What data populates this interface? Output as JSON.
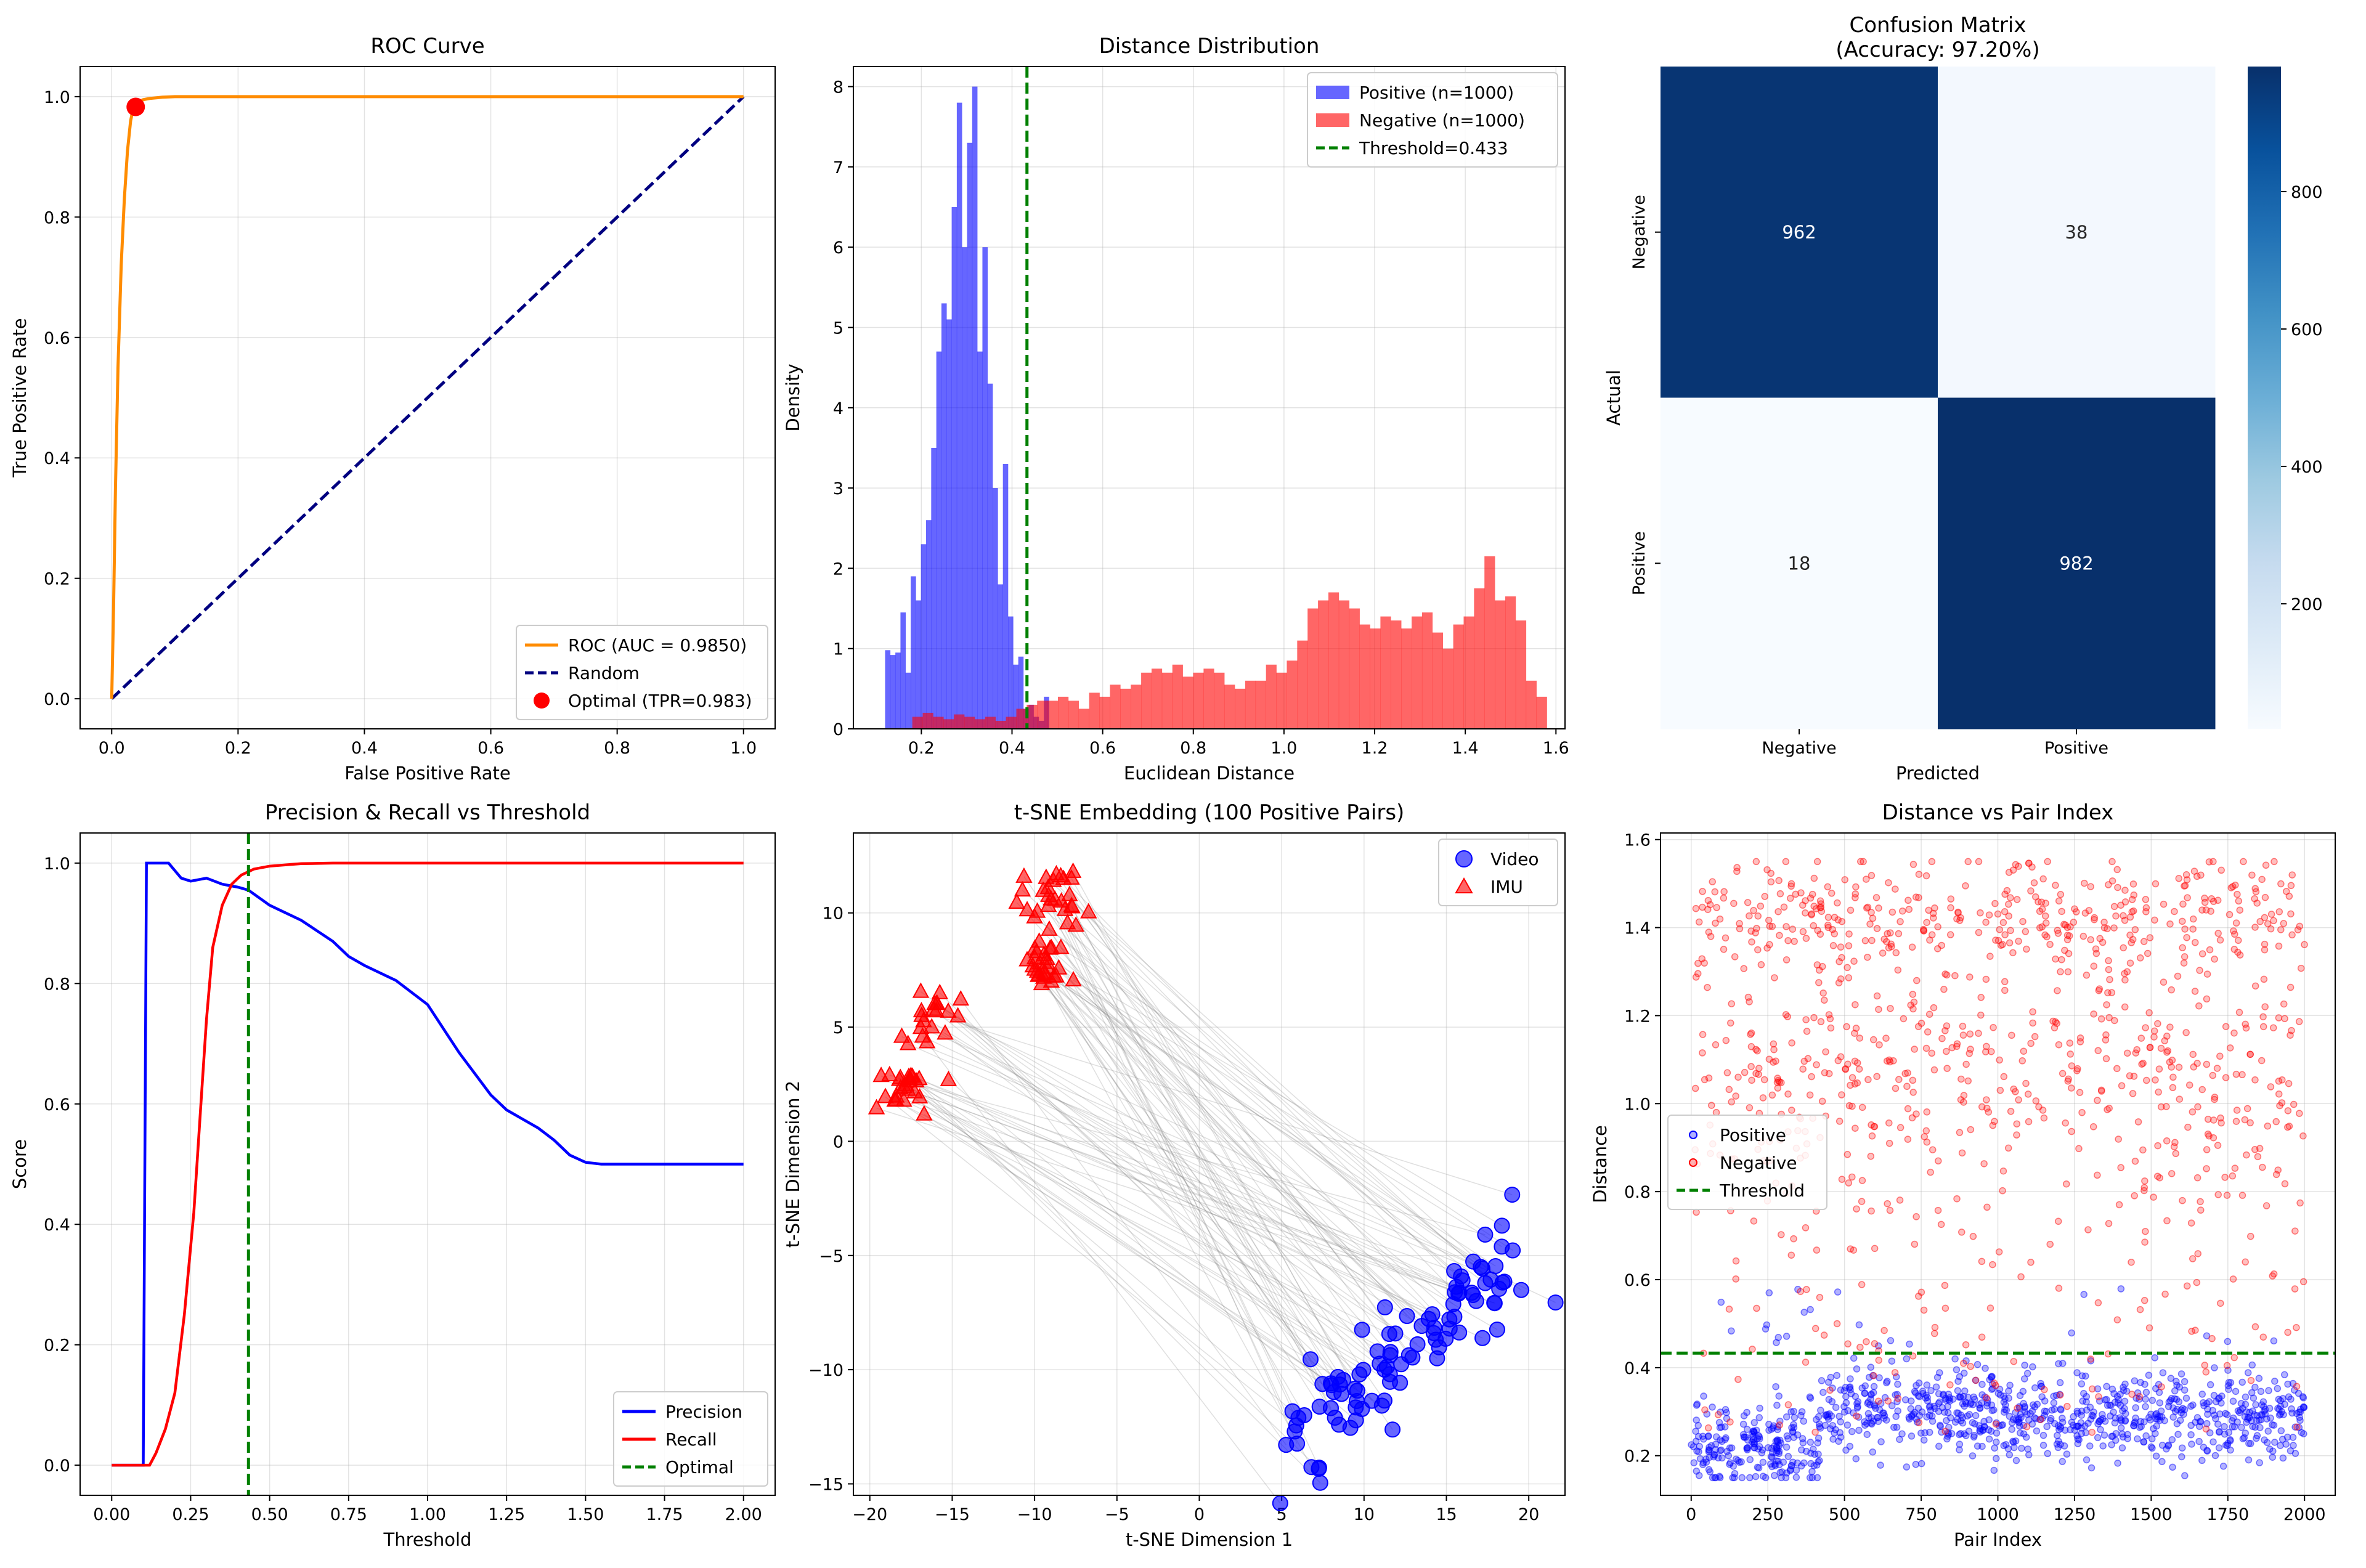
{
  "chart_data": [
    {
      "id": "roc",
      "type": "line",
      "title": "ROC Curve",
      "xlabel": "False Positive Rate",
      "ylabel": "True Positive Rate",
      "xlim": [
        -0.05,
        1.05
      ],
      "ylim": [
        -0.05,
        1.05
      ],
      "xticks": [
        0,
        0.2,
        0.4,
        0.6,
        0.8,
        1.0
      ],
      "yticks": [
        0,
        0.2,
        0.4,
        0.6,
        0.8,
        1.0
      ],
      "xticklabels": [
        "0.0",
        "0.2",
        "0.4",
        "0.6",
        "0.8",
        "1.0"
      ],
      "yticklabels": [
        "0.0",
        "0.2",
        "0.4",
        "0.6",
        "0.8",
        "1.0"
      ],
      "grid": true,
      "legend_position": "lower right",
      "series": [
        {
          "name": "ROC (AUC = 0.9850)",
          "color": "#ff8c00",
          "style": "solid",
          "x": [
            0,
            0.001,
            0.003,
            0.006,
            0.01,
            0.015,
            0.02,
            0.025,
            0.03,
            0.033,
            0.036,
            0.04,
            0.05,
            0.06,
            0.08,
            0.1,
            0.2,
            0.5,
            1.0
          ],
          "y": [
            0,
            0.05,
            0.15,
            0.35,
            0.55,
            0.72,
            0.83,
            0.91,
            0.96,
            0.975,
            0.983,
            0.99,
            0.995,
            0.997,
            0.999,
            1.0,
            1.0,
            1.0,
            1.0
          ]
        },
        {
          "name": "Random",
          "color": "#000080",
          "style": "dashed",
          "x": [
            0,
            1
          ],
          "y": [
            0,
            1
          ]
        }
      ],
      "points": [
        {
          "name": "Optimal (TPR=0.983)",
          "color": "#ff0000",
          "x": 0.038,
          "y": 0.983
        }
      ]
    },
    {
      "id": "dist",
      "type": "histogram",
      "title": "Distance Distribution",
      "xlabel": "Euclidean Distance",
      "ylabel": "Density",
      "xlim": [
        0.05,
        1.62
      ],
      "ylim": [
        0,
        8.25
      ],
      "xticks": [
        0.2,
        0.4,
        0.6,
        0.8,
        1.0,
        1.2,
        1.4,
        1.6
      ],
      "yticks": [
        0,
        1,
        2,
        3,
        4,
        5,
        6,
        7,
        8
      ],
      "xticklabels": [
        "0.2",
        "0.4",
        "0.6",
        "0.8",
        "1.0",
        "1.2",
        "1.4",
        "1.6"
      ],
      "yticklabels": [
        "0",
        "1",
        "2",
        "3",
        "4",
        "5",
        "6",
        "7",
        "8"
      ],
      "grid": true,
      "legend_position": "upper right",
      "series": [
        {
          "name": "Positive (n=1000)",
          "color": "#0000ff",
          "alpha": 0.6,
          "bin_start": 0.12,
          "bin_width": 0.0113,
          "values": [
            0.98,
            0.92,
            0.95,
            1.45,
            0.7,
            1.9,
            1.6,
            2.3,
            2.6,
            3.5,
            4.7,
            5.3,
            5.1,
            6.5,
            7.8,
            6.0,
            7.3,
            8.0,
            4.7,
            6.0,
            4.3,
            3.0,
            1.8,
            3.3,
            1.4,
            0.8,
            0.9,
            0.25,
            0.3,
            0.15,
            0.1,
            0.4
          ]
        },
        {
          "name": "Negative (n=1000)",
          "color": "#ff0000",
          "alpha": 0.6,
          "bin_start": 0.18,
          "bin_width": 0.02295,
          "values": [
            0.15,
            0.2,
            0.15,
            0.12,
            0.18,
            0.15,
            0.12,
            0.15,
            0.1,
            0.15,
            0.25,
            0.3,
            0.35,
            0.35,
            0.4,
            0.35,
            0.25,
            0.45,
            0.4,
            0.55,
            0.5,
            0.55,
            0.7,
            0.75,
            0.7,
            0.8,
            0.65,
            0.7,
            0.75,
            0.7,
            0.55,
            0.5,
            0.6,
            0.6,
            0.8,
            0.7,
            0.85,
            1.1,
            1.5,
            1.6,
            1.7,
            1.6,
            1.5,
            1.3,
            1.25,
            1.4,
            1.35,
            1.25,
            1.4,
            1.45,
            1.2,
            1.0,
            1.3,
            1.4,
            1.75,
            2.15,
            1.6,
            1.65,
            1.35,
            0.6,
            0.4
          ]
        }
      ],
      "vlines": [
        {
          "name": "Threshold=0.433",
          "color": "#008000",
          "x": 0.433
        }
      ]
    },
    {
      "id": "cm",
      "type": "heatmap",
      "title": "Confusion Matrix",
      "subtitle": "(Accuracy: 97.20%)",
      "xlabel": "Predicted",
      "ylabel": "Actual",
      "x_categories": [
        "Negative",
        "Positive"
      ],
      "y_categories": [
        "Negative",
        "Positive"
      ],
      "values": [
        [
          962,
          38
        ],
        [
          18,
          982
        ]
      ],
      "colorbar_ticks": [
        200,
        400,
        600,
        800
      ],
      "colorbar_ticklabels": [
        "200",
        "400",
        "600",
        "800"
      ],
      "vmin": 18,
      "vmax": 982,
      "cmap": [
        "#f7fbff",
        "#deebf7",
        "#c6dbef",
        "#9ecae1",
        "#6baed6",
        "#4292c6",
        "#2171b5",
        "#08519c",
        "#08306b"
      ]
    },
    {
      "id": "pr",
      "type": "line",
      "title": "Precision & Recall vs Threshold",
      "xlabel": "Threshold",
      "ylabel": "Score",
      "xlim": [
        -0.1,
        2.1
      ],
      "ylim": [
        -0.05,
        1.05
      ],
      "xticks": [
        0,
        0.25,
        0.5,
        0.75,
        1.0,
        1.25,
        1.5,
        1.75,
        2.0
      ],
      "yticks": [
        0,
        0.2,
        0.4,
        0.6,
        0.8,
        1.0
      ],
      "xticklabels": [
        "0.00",
        "0.25",
        "0.50",
        "0.75",
        "1.00",
        "1.25",
        "1.50",
        "1.75",
        "2.00"
      ],
      "yticklabels": [
        "0.0",
        "0.2",
        "0.4",
        "0.6",
        "0.8",
        "1.0"
      ],
      "grid": true,
      "legend_position": "lower right",
      "series": [
        {
          "name": "Precision",
          "color": "#0000ff",
          "x": [
            0,
            0.1,
            0.11,
            0.18,
            0.22,
            0.25,
            0.3,
            0.35,
            0.4,
            0.433,
            0.5,
            0.6,
            0.7,
            0.75,
            0.8,
            0.9,
            1.0,
            1.05,
            1.1,
            1.15,
            1.2,
            1.25,
            1.3,
            1.35,
            1.4,
            1.45,
            1.5,
            1.55,
            1.6,
            2.0
          ],
          "y": [
            0,
            0,
            1.0,
            1.0,
            0.975,
            0.97,
            0.975,
            0.965,
            0.96,
            0.955,
            0.93,
            0.905,
            0.87,
            0.845,
            0.83,
            0.805,
            0.765,
            0.725,
            0.685,
            0.65,
            0.615,
            0.59,
            0.575,
            0.56,
            0.54,
            0.515,
            0.503,
            0.5,
            0.5,
            0.5
          ]
        },
        {
          "name": "Recall",
          "color": "#ff0000",
          "x": [
            0,
            0.12,
            0.14,
            0.17,
            0.2,
            0.23,
            0.26,
            0.28,
            0.3,
            0.32,
            0.35,
            0.38,
            0.41,
            0.45,
            0.5,
            0.6,
            0.7,
            2.0
          ],
          "y": [
            0,
            0,
            0.02,
            0.06,
            0.12,
            0.25,
            0.42,
            0.58,
            0.74,
            0.86,
            0.93,
            0.965,
            0.98,
            0.99,
            0.995,
            0.999,
            1.0,
            1.0
          ]
        }
      ],
      "vlines": [
        {
          "name": "Optimal",
          "color": "#008000",
          "x": 0.433
        }
      ]
    },
    {
      "id": "tsne",
      "type": "scatter",
      "title": "t-SNE Embedding (100 Positive Pairs)",
      "xlabel": "t-SNE Dimension 1",
      "ylabel": "t-SNE Dimension 2",
      "xlim": [
        -21.0,
        22.2
      ],
      "ylim": [
        -15.5,
        13.5
      ],
      "xticks": [
        -20,
        -15,
        -10,
        -5,
        0,
        5,
        10,
        15,
        20
      ],
      "yticks": [
        -15,
        -10,
        -5,
        0,
        5,
        10
      ],
      "xticklabels": [
        "−20",
        "−15",
        "−10",
        "−5",
        "0",
        "5",
        "10",
        "15",
        "20"
      ],
      "yticklabels": [
        "−15",
        "−10",
        "−5",
        "0",
        "5",
        "10"
      ],
      "grid": true,
      "legend_position": "upper right",
      "series": [
        {
          "name": "Video",
          "color": "#0000ff",
          "marker": "circle",
          "n": 100,
          "region": {
            "from": [
              5.5,
              -13.5
            ],
            "to": [
              19.5,
              -5.0
            ],
            "spread": 1.1
          }
        },
        {
          "name": "IMU",
          "color": "#ff0000",
          "marker": "triangle",
          "n": 100,
          "clusters": [
            {
              "center": [
                -9.0,
                10.5
              ],
              "spread": [
                2.0,
                1.3
              ],
              "n": 30
            },
            {
              "center": [
                -16.5,
                5.5
              ],
              "spread": [
                1.3,
                1.2
              ],
              "n": 20
            },
            {
              "center": [
                -18.0,
                2.5
              ],
              "spread": [
                1.5,
                1.0
              ],
              "n": 25
            },
            {
              "center": [
                -9.5,
                7.5
              ],
              "spread": [
                1.0,
                1.0
              ],
              "n": 25
            }
          ]
        }
      ],
      "pair_lines": {
        "color": "#808080",
        "alpha": 0.25
      }
    },
    {
      "id": "pairs",
      "type": "scatter",
      "title": "Distance vs Pair Index",
      "xlabel": "Pair Index",
      "ylabel": "Distance",
      "xlim": [
        -100,
        2100
      ],
      "ylim": [
        0.11,
        1.615
      ],
      "xticks": [
        0,
        250,
        500,
        750,
        1000,
        1250,
        1500,
        1750,
        2000
      ],
      "yticks": [
        0.2,
        0.4,
        0.6,
        0.8,
        1.0,
        1.2,
        1.4,
        1.6
      ],
      "xticklabels": [
        "0",
        "250",
        "500",
        "750",
        "1000",
        "1250",
        "1500",
        "1750",
        "2000"
      ],
      "yticklabels": [
        "0.2",
        "0.4",
        "0.6",
        "0.8",
        "1.0",
        "1.2",
        "1.4",
        "1.6"
      ],
      "grid": true,
      "legend_position": "center left",
      "series": [
        {
          "name": "Positive",
          "color": "#0000ff",
          "n": 1000,
          "range": [
            0.15,
            0.45
          ]
        },
        {
          "name": "Negative",
          "color": "#ff0000",
          "n": 1000,
          "range": [
            0.4,
            1.55
          ]
        }
      ],
      "hlines": [
        {
          "name": "Threshold",
          "color": "#008000",
          "y": 0.433
        }
      ]
    }
  ]
}
